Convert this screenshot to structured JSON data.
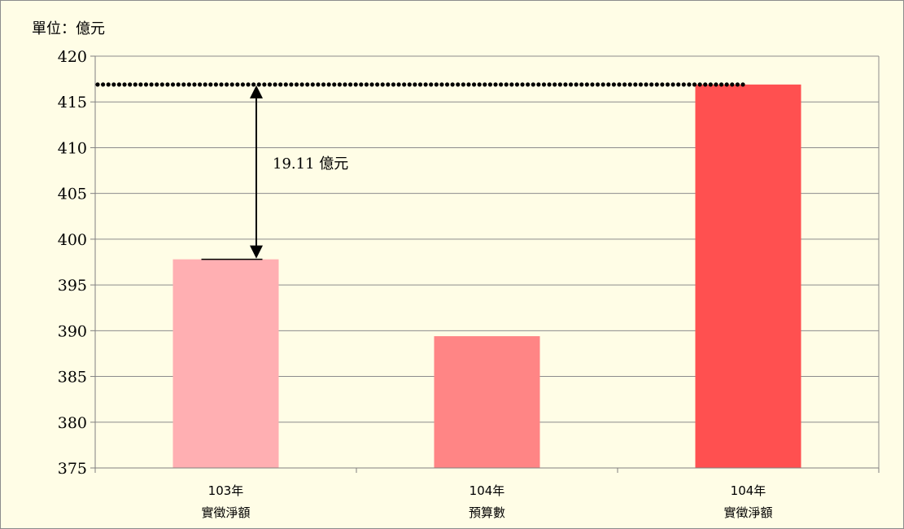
{
  "chart_data": {
    "type": "bar",
    "unit_label": "單位：億元",
    "categories": [
      [
        "103年",
        "實徵淨額"
      ],
      [
        "104年",
        "預算數"
      ],
      [
        "104年",
        "實徵淨額"
      ]
    ],
    "values": [
      397.8,
      389.4,
      416.9
    ],
    "bar_colors": [
      "#ffafb2",
      "#ff8585",
      "#ff5050"
    ],
    "ylim": [
      375,
      420
    ],
    "yticks": [
      375,
      380,
      385,
      390,
      395,
      400,
      405,
      410,
      415,
      420
    ],
    "grid": true,
    "reference_line": {
      "value": 416.9,
      "style": "dotted"
    },
    "annotation": {
      "text": "19.11 億元",
      "from_value": 397.8,
      "to_value": 416.9,
      "category_index": 0
    }
  }
}
